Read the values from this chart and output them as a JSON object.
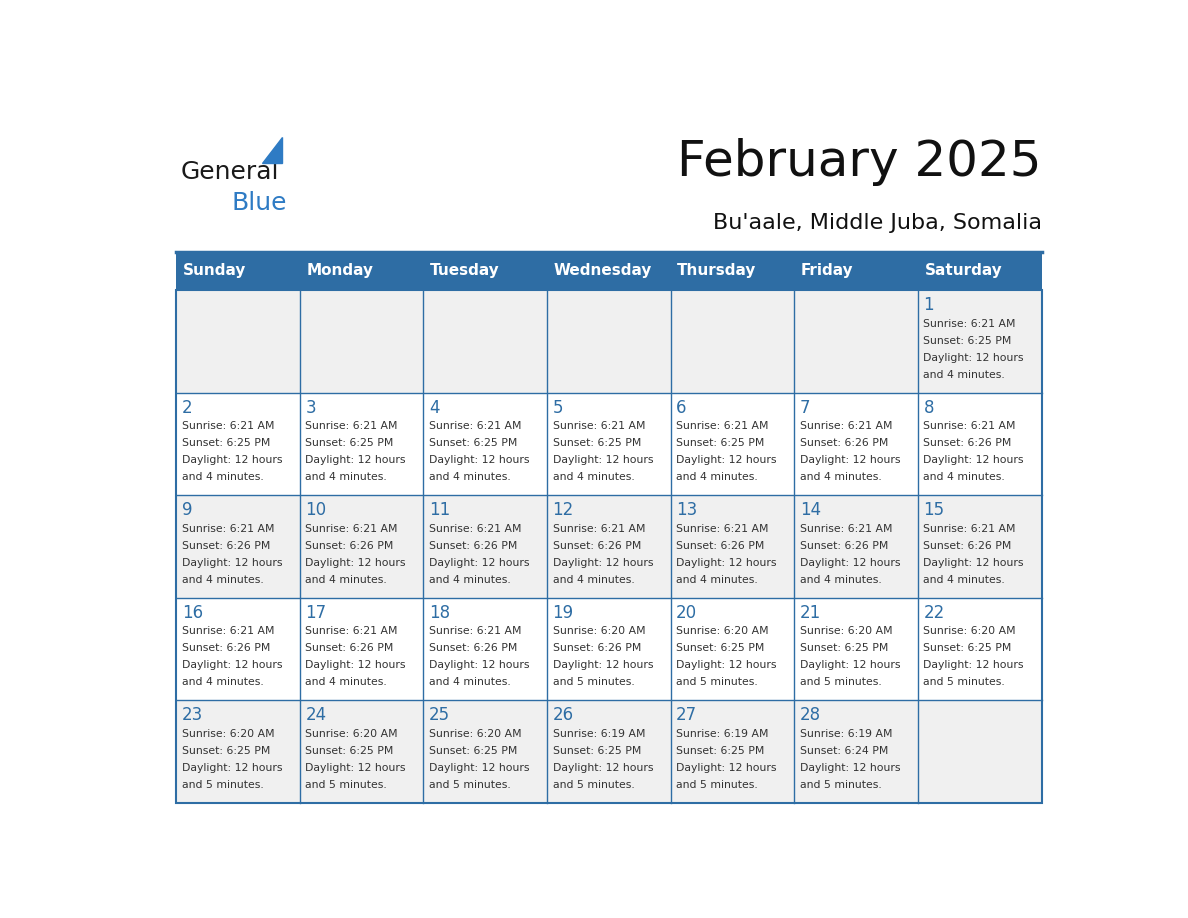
{
  "title": "February 2025",
  "subtitle": "Bu'aale, Middle Juba, Somalia",
  "header_bg": "#2e6da4",
  "header_text_color": "#ffffff",
  "cell_bg_light": "#f0f0f0",
  "cell_bg_white": "#ffffff",
  "border_color": "#2e6da4",
  "text_color": "#333333",
  "day_headers": [
    "Sunday",
    "Monday",
    "Tuesday",
    "Wednesday",
    "Thursday",
    "Friday",
    "Saturday"
  ],
  "days": [
    {
      "day": 1,
      "col": 6,
      "row": 0,
      "sunrise": "6:21 AM",
      "sunset": "6:25 PM",
      "daylight": "12 hours and 4 minutes."
    },
    {
      "day": 2,
      "col": 0,
      "row": 1,
      "sunrise": "6:21 AM",
      "sunset": "6:25 PM",
      "daylight": "12 hours and 4 minutes."
    },
    {
      "day": 3,
      "col": 1,
      "row": 1,
      "sunrise": "6:21 AM",
      "sunset": "6:25 PM",
      "daylight": "12 hours and 4 minutes."
    },
    {
      "day": 4,
      "col": 2,
      "row": 1,
      "sunrise": "6:21 AM",
      "sunset": "6:25 PM",
      "daylight": "12 hours and 4 minutes."
    },
    {
      "day": 5,
      "col": 3,
      "row": 1,
      "sunrise": "6:21 AM",
      "sunset": "6:25 PM",
      "daylight": "12 hours and 4 minutes."
    },
    {
      "day": 6,
      "col": 4,
      "row": 1,
      "sunrise": "6:21 AM",
      "sunset": "6:25 PM",
      "daylight": "12 hours and 4 minutes."
    },
    {
      "day": 7,
      "col": 5,
      "row": 1,
      "sunrise": "6:21 AM",
      "sunset": "6:26 PM",
      "daylight": "12 hours and 4 minutes."
    },
    {
      "day": 8,
      "col": 6,
      "row": 1,
      "sunrise": "6:21 AM",
      "sunset": "6:26 PM",
      "daylight": "12 hours and 4 minutes."
    },
    {
      "day": 9,
      "col": 0,
      "row": 2,
      "sunrise": "6:21 AM",
      "sunset": "6:26 PM",
      "daylight": "12 hours and 4 minutes."
    },
    {
      "day": 10,
      "col": 1,
      "row": 2,
      "sunrise": "6:21 AM",
      "sunset": "6:26 PM",
      "daylight": "12 hours and 4 minutes."
    },
    {
      "day": 11,
      "col": 2,
      "row": 2,
      "sunrise": "6:21 AM",
      "sunset": "6:26 PM",
      "daylight": "12 hours and 4 minutes."
    },
    {
      "day": 12,
      "col": 3,
      "row": 2,
      "sunrise": "6:21 AM",
      "sunset": "6:26 PM",
      "daylight": "12 hours and 4 minutes."
    },
    {
      "day": 13,
      "col": 4,
      "row": 2,
      "sunrise": "6:21 AM",
      "sunset": "6:26 PM",
      "daylight": "12 hours and 4 minutes."
    },
    {
      "day": 14,
      "col": 5,
      "row": 2,
      "sunrise": "6:21 AM",
      "sunset": "6:26 PM",
      "daylight": "12 hours and 4 minutes."
    },
    {
      "day": 15,
      "col": 6,
      "row": 2,
      "sunrise": "6:21 AM",
      "sunset": "6:26 PM",
      "daylight": "12 hours and 4 minutes."
    },
    {
      "day": 16,
      "col": 0,
      "row": 3,
      "sunrise": "6:21 AM",
      "sunset": "6:26 PM",
      "daylight": "12 hours and 4 minutes."
    },
    {
      "day": 17,
      "col": 1,
      "row": 3,
      "sunrise": "6:21 AM",
      "sunset": "6:26 PM",
      "daylight": "12 hours and 4 minutes."
    },
    {
      "day": 18,
      "col": 2,
      "row": 3,
      "sunrise": "6:21 AM",
      "sunset": "6:26 PM",
      "daylight": "12 hours and 4 minutes."
    },
    {
      "day": 19,
      "col": 3,
      "row": 3,
      "sunrise": "6:20 AM",
      "sunset": "6:26 PM",
      "daylight": "12 hours and 5 minutes."
    },
    {
      "day": 20,
      "col": 4,
      "row": 3,
      "sunrise": "6:20 AM",
      "sunset": "6:25 PM",
      "daylight": "12 hours and 5 minutes."
    },
    {
      "day": 21,
      "col": 5,
      "row": 3,
      "sunrise": "6:20 AM",
      "sunset": "6:25 PM",
      "daylight": "12 hours and 5 minutes."
    },
    {
      "day": 22,
      "col": 6,
      "row": 3,
      "sunrise": "6:20 AM",
      "sunset": "6:25 PM",
      "daylight": "12 hours and 5 minutes."
    },
    {
      "day": 23,
      "col": 0,
      "row": 4,
      "sunrise": "6:20 AM",
      "sunset": "6:25 PM",
      "daylight": "12 hours and 5 minutes."
    },
    {
      "day": 24,
      "col": 1,
      "row": 4,
      "sunrise": "6:20 AM",
      "sunset": "6:25 PM",
      "daylight": "12 hours and 5 minutes."
    },
    {
      "day": 25,
      "col": 2,
      "row": 4,
      "sunrise": "6:20 AM",
      "sunset": "6:25 PM",
      "daylight": "12 hours and 5 minutes."
    },
    {
      "day": 26,
      "col": 3,
      "row": 4,
      "sunrise": "6:19 AM",
      "sunset": "6:25 PM",
      "daylight": "12 hours and 5 minutes."
    },
    {
      "day": 27,
      "col": 4,
      "row": 4,
      "sunrise": "6:19 AM",
      "sunset": "6:25 PM",
      "daylight": "12 hours and 5 minutes."
    },
    {
      "day": 28,
      "col": 5,
      "row": 4,
      "sunrise": "6:19 AM",
      "sunset": "6:24 PM",
      "daylight": "12 hours and 5 minutes."
    }
  ],
  "num_rows": 5,
  "num_cols": 7,
  "logo_text_general": "General",
  "logo_text_blue": "Blue",
  "logo_color_general": "#1a1a1a",
  "logo_color_blue": "#2e7bc4",
  "logo_triangle_color": "#2e7bc4"
}
